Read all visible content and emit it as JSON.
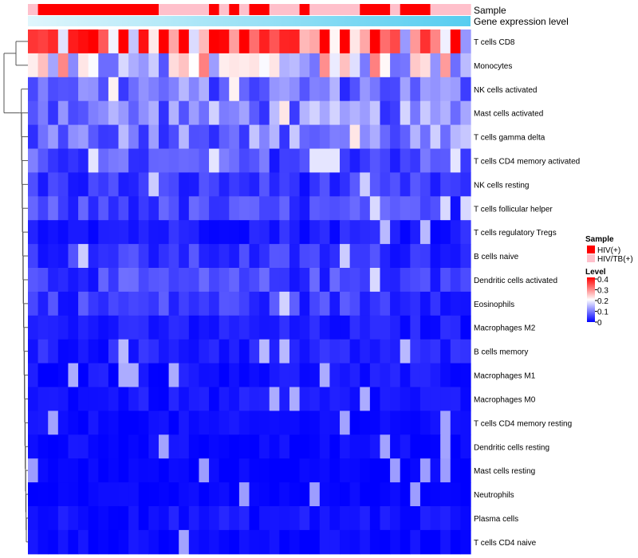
{
  "chart_data": {
    "type": "heatmap",
    "annotation_labels": {
      "sample": "Sample",
      "expression": "Gene expression level"
    },
    "sample_colors": {
      "HIV(+)": "#ff0000",
      "HIV/TB(+)": "#ffc0cb"
    },
    "sample_groups": [
      "HIV/TB(+)",
      "HIV(+)",
      "HIV(+)",
      "HIV(+)",
      "HIV(+)",
      "HIV(+)",
      "HIV(+)",
      "HIV(+)",
      "HIV(+)",
      "HIV(+)",
      "HIV(+)",
      "HIV(+)",
      "HIV(+)",
      "HIV/TB(+)",
      "HIV/TB(+)",
      "HIV/TB(+)",
      "HIV/TB(+)",
      "HIV/TB(+)",
      "HIV(+)",
      "HIV/TB(+)",
      "HIV(+)",
      "HIV/TB(+)",
      "HIV(+)",
      "HIV(+)",
      "HIV/TB(+)",
      "HIV/TB(+)",
      "HIV/TB(+)",
      "HIV(+)",
      "HIV/TB(+)",
      "HIV/TB(+)",
      "HIV/TB(+)",
      "HIV/TB(+)",
      "HIV/TB(+)",
      "HIV(+)",
      "HIV(+)",
      "HIV(+)",
      "HIV/TB(+)",
      "HIV(+)",
      "HIV(+)",
      "HIV(+)",
      "HIV/TB(+)",
      "HIV/TB(+)",
      "HIV/TB(+)",
      "HIV/TB(+)"
    ],
    "rows": [
      "T cells CD8",
      "Monocytes",
      "NK cells activated",
      "Mast cells activated",
      "T cells gamma delta",
      "T cells CD4 memory activated",
      "NK cells resting",
      "T cells follicular helper",
      "T cells regulatory  Tregs",
      "B cells naive",
      "Dendritic cells activated",
      "Eosinophils",
      "Macrophages M2",
      "B cells memory",
      "Macrophages M1",
      "Macrophages M0",
      "T cells CD4 memory resting",
      "Dendritic cells resting",
      "Mast cells resting",
      "Neutrophils",
      "Plasma cells",
      "T cells CD4 naive"
    ],
    "row_means": [
      0.3,
      0.18,
      0.09,
      0.1,
      0.1,
      0.06,
      0.04,
      0.05,
      0.025,
      0.04,
      0.05,
      0.045,
      0.02,
      0.025,
      0.015,
      0.015,
      0.008,
      0.008,
      0.003,
      0.003,
      0.015,
      0.008
    ],
    "color_scale": {
      "low": "#0000ff",
      "mid": "#ffffff",
      "high": "#ff0000",
      "min": 0,
      "max": 0.4
    },
    "legend": {
      "sample_title": "Sample",
      "sample_entries": [
        {
          "label": "HIV(+)",
          "color": "#ff0000"
        },
        {
          "label": "HIV/TB(+)",
          "color": "#ffc0cb"
        }
      ],
      "level_title": "Level",
      "level_ticks": [
        "0.4",
        "0.3",
        "0.2",
        "0.1",
        "0"
      ],
      "level_values": [
        0.4,
        0.3,
        0.2,
        0.1,
        0
      ]
    },
    "expression_gradient": {
      "from": "#e0f6fc",
      "to": "#56cdf0"
    }
  }
}
